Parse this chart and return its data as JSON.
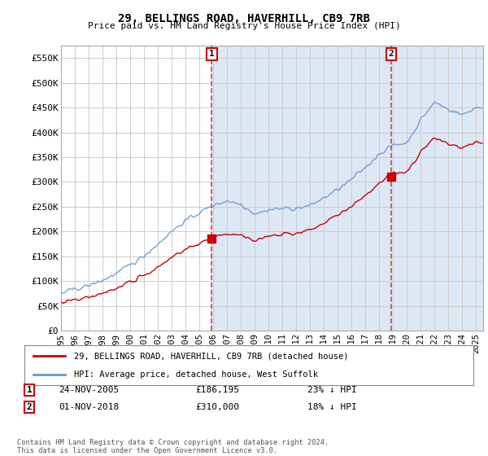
{
  "title": "29, BELLINGS ROAD, HAVERHILL, CB9 7RB",
  "subtitle": "Price paid vs. HM Land Registry's House Price Index (HPI)",
  "legend_label_red": "29, BELLINGS ROAD, HAVERHILL, CB9 7RB (detached house)",
  "legend_label_blue": "HPI: Average price, detached house, West Suffolk",
  "annotation1_date": "24-NOV-2005",
  "annotation1_price": "£186,195",
  "annotation1_hpi": "23% ↓ HPI",
  "annotation2_date": "01-NOV-2018",
  "annotation2_price": "£310,000",
  "annotation2_hpi": "18% ↓ HPI",
  "footer": "Contains HM Land Registry data © Crown copyright and database right 2024.\nThis data is licensed under the Open Government Licence v3.0.",
  "ylim": [
    0,
    575000
  ],
  "yticks": [
    0,
    50000,
    100000,
    150000,
    200000,
    250000,
    300000,
    350000,
    400000,
    450000,
    500000,
    550000
  ],
  "ytick_labels": [
    "£0",
    "£50K",
    "£100K",
    "£150K",
    "£200K",
    "£250K",
    "£300K",
    "£350K",
    "£400K",
    "£450K",
    "£500K",
    "£550K"
  ],
  "sale1_x": 2005.9,
  "sale1_y": 186195,
  "sale2_x": 2018.84,
  "sale2_y": 310000,
  "color_red": "#cc0000",
  "color_blue": "#6699cc",
  "color_blue_fill": "#dde8f5",
  "color_vline": "#cc3333",
  "background_plot": "#ffffff",
  "background_fig": "#ffffff",
  "grid_color": "#cccccc",
  "xlim_start": 1995.0,
  "xlim_end": 2025.5
}
